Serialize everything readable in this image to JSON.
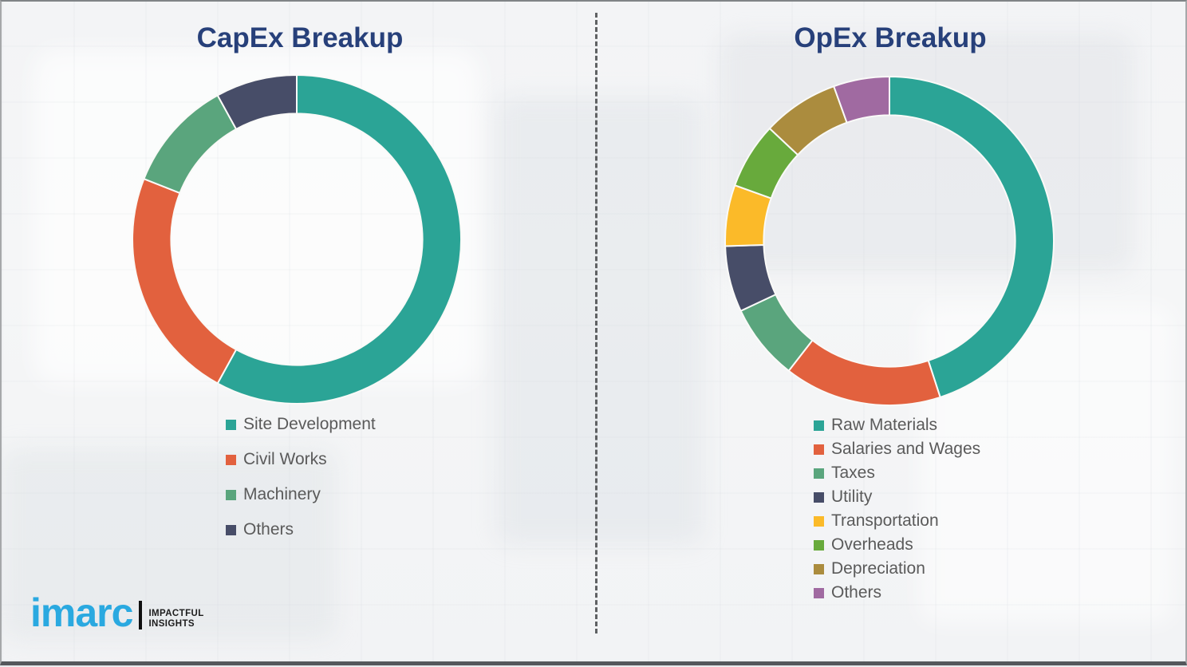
{
  "charts": [
    {
      "title": "CapEx Breakup",
      "dom": "donut-0",
      "legend_dom": "legend-0"
    },
    {
      "title": "OpEx Breakup",
      "dom": "donut-1",
      "legend_dom": "legend-1"
    }
  ],
  "chart_data": [
    {
      "type": "donut",
      "title": "CapEx Breakup",
      "start_angle_deg": 0,
      "direction": "clockwise",
      "hole_ratio": 0.765,
      "legend_position": "below",
      "series": [
        {
          "label": "Site Development",
          "value": 58,
          "color": "#2BA496"
        },
        {
          "label": "Civil Works",
          "value": 23,
          "color": "#E2613E"
        },
        {
          "label": "Machinery",
          "value": 11,
          "color": "#5AA57D"
        },
        {
          "label": "Others",
          "value": 8,
          "color": "#474D68"
        }
      ],
      "units": "percent"
    },
    {
      "type": "donut",
      "title": "OpEx Breakup",
      "start_angle_deg": 0,
      "direction": "clockwise",
      "hole_ratio": 0.765,
      "legend_position": "below",
      "series": [
        {
          "label": "Raw Materials",
          "value": 45,
          "color": "#2BA496"
        },
        {
          "label": "Salaries and Wages",
          "value": 15.5,
          "color": "#E2613E"
        },
        {
          "label": "Taxes",
          "value": 7.5,
          "color": "#5AA57D"
        },
        {
          "label": "Utility",
          "value": 6.5,
          "color": "#474D68"
        },
        {
          "label": "Transportation",
          "value": 6,
          "color": "#FBBA29"
        },
        {
          "label": "Overheads",
          "value": 6.5,
          "color": "#68AA3C"
        },
        {
          "label": "Depreciation",
          "value": 7.5,
          "color": "#AB8C3E"
        },
        {
          "label": "Others",
          "value": 5.5,
          "color": "#A06AA1"
        }
      ],
      "units": "percent"
    }
  ],
  "logo": {
    "wordmark": "imarc",
    "tagline_line1": "IMPACTFUL",
    "tagline_line2": "INSIGHTS",
    "wordmark_color": "#2AA9E0"
  },
  "style": {
    "title_color": "#27407A",
    "legend_text_color": "#5A5A5A",
    "background_color": "#F3F4F6",
    "slice_separator_color": "#FAFAF8"
  }
}
